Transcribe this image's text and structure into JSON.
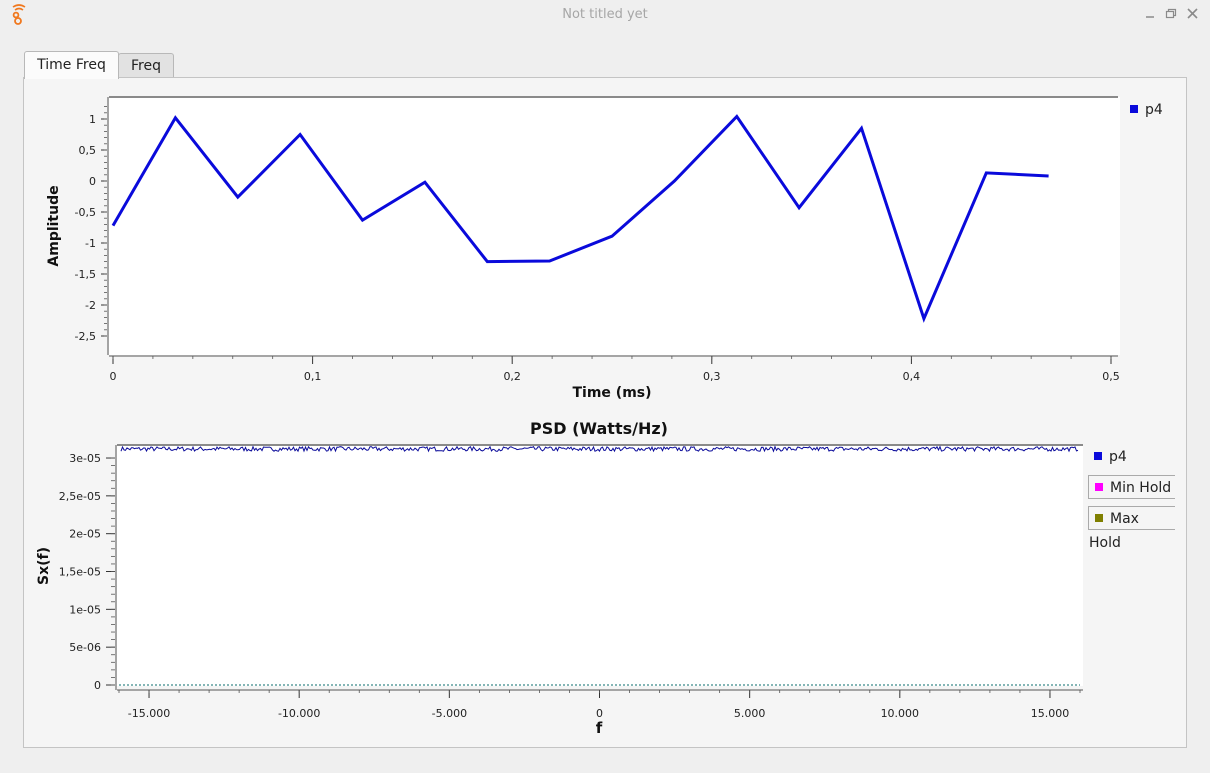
{
  "window": {
    "title": "Not titled yet"
  },
  "tabs": [
    {
      "label": "Time Freq",
      "active": true
    },
    {
      "label": "Freq",
      "active": false
    }
  ],
  "colors": {
    "trace": "#0a0adb",
    "min_hold": "#ff00ff",
    "max_hold": "#7f7f00",
    "grid": "#ffffff"
  },
  "icons": {
    "app": "gnuradio-logo-icon",
    "minimize": "minimize-icon",
    "restore": "restore-icon",
    "close": "close-icon"
  },
  "time_plot": {
    "ylabel": "Amplitude",
    "xlabel": "Time (ms)",
    "y_ticks": [
      "1",
      "0,5",
      "0",
      "-0,5",
      "-1",
      "-1,5",
      "-2",
      "-2,5"
    ],
    "x_ticks": [
      "0",
      "0,1",
      "0,2",
      "0,3",
      "0,4",
      "0,5"
    ],
    "legend": [
      {
        "label": "p4"
      }
    ]
  },
  "psd_plot": {
    "title": "PSD (Watts/Hz)",
    "ylabel": "Sx(f)",
    "xlabel": "f",
    "y_ticks": [
      "3e-05",
      "2,5e-05",
      "2e-05",
      "1,5e-05",
      "1e-05",
      "5e-06",
      "0"
    ],
    "x_ticks": [
      "-15.000",
      "-10.000",
      "-5.000",
      "0",
      "5.000",
      "10.000",
      "15.000"
    ],
    "legend": [
      {
        "label": "p4"
      },
      {
        "label": "Min Hold"
      },
      {
        "label": "Max Hold"
      }
    ]
  },
  "chart_data": [
    {
      "type": "line",
      "ylabel": "Amplitude",
      "xlabel": "Time (ms)",
      "xlim": [
        0,
        0.5
      ],
      "ylim": [
        -2.6,
        1.25
      ],
      "series": [
        {
          "name": "p4",
          "x": [
            0,
            0.03125,
            0.0625,
            0.09375,
            0.125,
            0.15625,
            0.1875,
            0.21875,
            0.25,
            0.28125,
            0.3125,
            0.34375,
            0.375,
            0.40625,
            0.4375,
            0.46875
          ],
          "y": [
            -0.72,
            1.02,
            -0.26,
            0.75,
            -0.63,
            -0.02,
            -1.3,
            -1.29,
            -0.89,
            0.0,
            1.04,
            -0.43,
            0.85,
            -2.22,
            0.13,
            0.08
          ]
        }
      ],
      "legend": "right"
    },
    {
      "type": "line",
      "title": "PSD (Watts/Hz)",
      "ylabel": "Sx(f)",
      "xlabel": "f",
      "xlim": [
        -16000,
        16000
      ],
      "ylim": [
        0,
        3.15e-05
      ],
      "series": [
        {
          "name": "p4",
          "flat_value": 3.12e-05,
          "noise": 3e-07
        },
        {
          "name": "Min Hold",
          "flat_value": 0
        },
        {
          "name": "Max Hold",
          "flat_value": 0
        }
      ],
      "legend": "right"
    }
  ]
}
